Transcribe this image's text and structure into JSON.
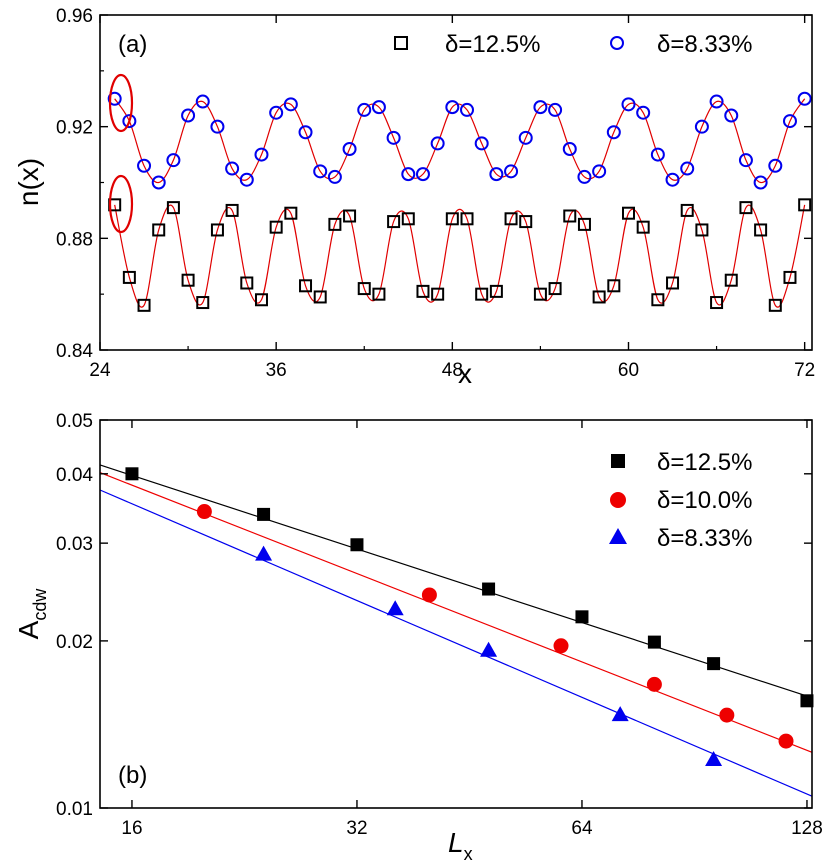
{
  "chart_data": [
    {
      "type": "scatter",
      "panel_label": "(a)",
      "xlabel": "x",
      "ylabel": "n(x)",
      "xlim": [
        24,
        72.5
      ],
      "ylim": [
        0.84,
        0.96
      ],
      "xticks": [
        24,
        36,
        48,
        60,
        72
      ],
      "yticks": [
        0.84,
        0.88,
        0.92,
        0.96
      ],
      "xtick_labels": [
        "24",
        "36",
        "48",
        "60",
        "72"
      ],
      "ytick_labels": [
        "0.84",
        "0.88",
        "0.92",
        "0.96"
      ],
      "legend_position": "top-right",
      "series": [
        {
          "name": "δ=12.5%",
          "marker": "open-square",
          "color": "#000000",
          "fit_color": "#e00000",
          "x": [
            25,
            26,
            27,
            28,
            29,
            30,
            31,
            32,
            33,
            34,
            35,
            36,
            37,
            38,
            39,
            40,
            41,
            42,
            43,
            44,
            45,
            46,
            47,
            48,
            49,
            50,
            51,
            52,
            53,
            54,
            55,
            56,
            57,
            58,
            59,
            60,
            61,
            62,
            63,
            64,
            65,
            66,
            67,
            68,
            69,
            70,
            71,
            72
          ],
          "y": [
            0.892,
            0.866,
            0.856,
            0.883,
            0.891,
            0.865,
            0.857,
            0.883,
            0.89,
            0.864,
            0.858,
            0.884,
            0.889,
            0.863,
            0.859,
            0.885,
            0.888,
            0.862,
            0.86,
            0.886,
            0.887,
            0.861,
            0.86,
            0.887,
            0.887,
            0.86,
            0.861,
            0.887,
            0.886,
            0.86,
            0.862,
            0.888,
            0.885,
            0.859,
            0.863,
            0.889,
            0.884,
            0.858,
            0.864,
            0.89,
            0.883,
            0.857,
            0.865,
            0.891,
            0.883,
            0.856,
            0.866,
            0.892
          ]
        },
        {
          "name": "δ=8.33%",
          "marker": "open-circle",
          "color": "#0000ee",
          "fit_color": "#e00000",
          "x": [
            25,
            26,
            27,
            28,
            29,
            30,
            31,
            32,
            33,
            34,
            35,
            36,
            37,
            38,
            39,
            40,
            41,
            42,
            43,
            44,
            45,
            46,
            47,
            48,
            49,
            50,
            51,
            52,
            53,
            54,
            55,
            56,
            57,
            58,
            59,
            60,
            61,
            62,
            63,
            64,
            65,
            66,
            67,
            68,
            69,
            70,
            71,
            72
          ],
          "y": [
            0.93,
            0.922,
            0.906,
            0.9,
            0.908,
            0.924,
            0.929,
            0.92,
            0.905,
            0.901,
            0.91,
            0.925,
            0.928,
            0.918,
            0.904,
            0.902,
            0.912,
            0.926,
            0.927,
            0.916,
            0.903,
            0.903,
            0.914,
            0.927,
            0.926,
            0.914,
            0.903,
            0.904,
            0.916,
            0.927,
            0.926,
            0.912,
            0.902,
            0.904,
            0.918,
            0.928,
            0.925,
            0.91,
            0.901,
            0.905,
            0.92,
            0.929,
            0.924,
            0.908,
            0.9,
            0.906,
            0.922,
            0.93
          ]
        }
      ]
    },
    {
      "type": "scatter",
      "panel_label": "(b)",
      "xlabel": "L",
      "xlabel_sub": "x",
      "ylabel": "A",
      "ylabel_sub": "cdw",
      "xscale": "log",
      "yscale": "log",
      "xlim": [
        14.5,
        130
      ],
      "ylim": [
        0.01,
        0.05
      ],
      "xticks": [
        16,
        32,
        64,
        128
      ],
      "yticks": [
        0.01,
        0.02,
        0.03,
        0.04,
        0.05
      ],
      "xtick_labels": [
        "16",
        "32",
        "64",
        "128"
      ],
      "ytick_labels": [
        "0.01",
        "0.02",
        "0.03",
        "0.04",
        "0.05"
      ],
      "legend_position": "top-right",
      "series": [
        {
          "name": "δ=12.5%",
          "marker": "filled-square",
          "color": "#000000",
          "x": [
            16,
            24,
            32,
            48,
            64,
            80,
            96,
            128
          ],
          "y": [
            0.04,
            0.0338,
            0.0298,
            0.0248,
            0.0221,
            0.0199,
            0.0182,
            0.0156
          ],
          "fit": [
            [
              14.5,
              0.0415
            ],
            [
              130,
              0.0158
            ]
          ]
        },
        {
          "name": "δ=10.0%",
          "marker": "filled-circle",
          "color": "#ee0000",
          "x": [
            20,
            40,
            60,
            80,
            100,
            120
          ],
          "y": [
            0.0342,
            0.0242,
            0.0196,
            0.0167,
            0.0147,
            0.0132
          ],
          "fit": [
            [
              14.5,
              0.0402
            ],
            [
              130,
              0.0126
            ]
          ]
        },
        {
          "name": "δ=8.33%",
          "marker": "filled-triangle",
          "color": "#0000ee",
          "x": [
            24,
            36,
            48,
            72,
            96
          ],
          "y": [
            0.0286,
            0.0228,
            0.0192,
            0.0147,
            0.0122
          ],
          "fit": [
            [
              14.5,
              0.0374
            ],
            [
              130,
              0.0105
            ]
          ]
        }
      ]
    }
  ]
}
